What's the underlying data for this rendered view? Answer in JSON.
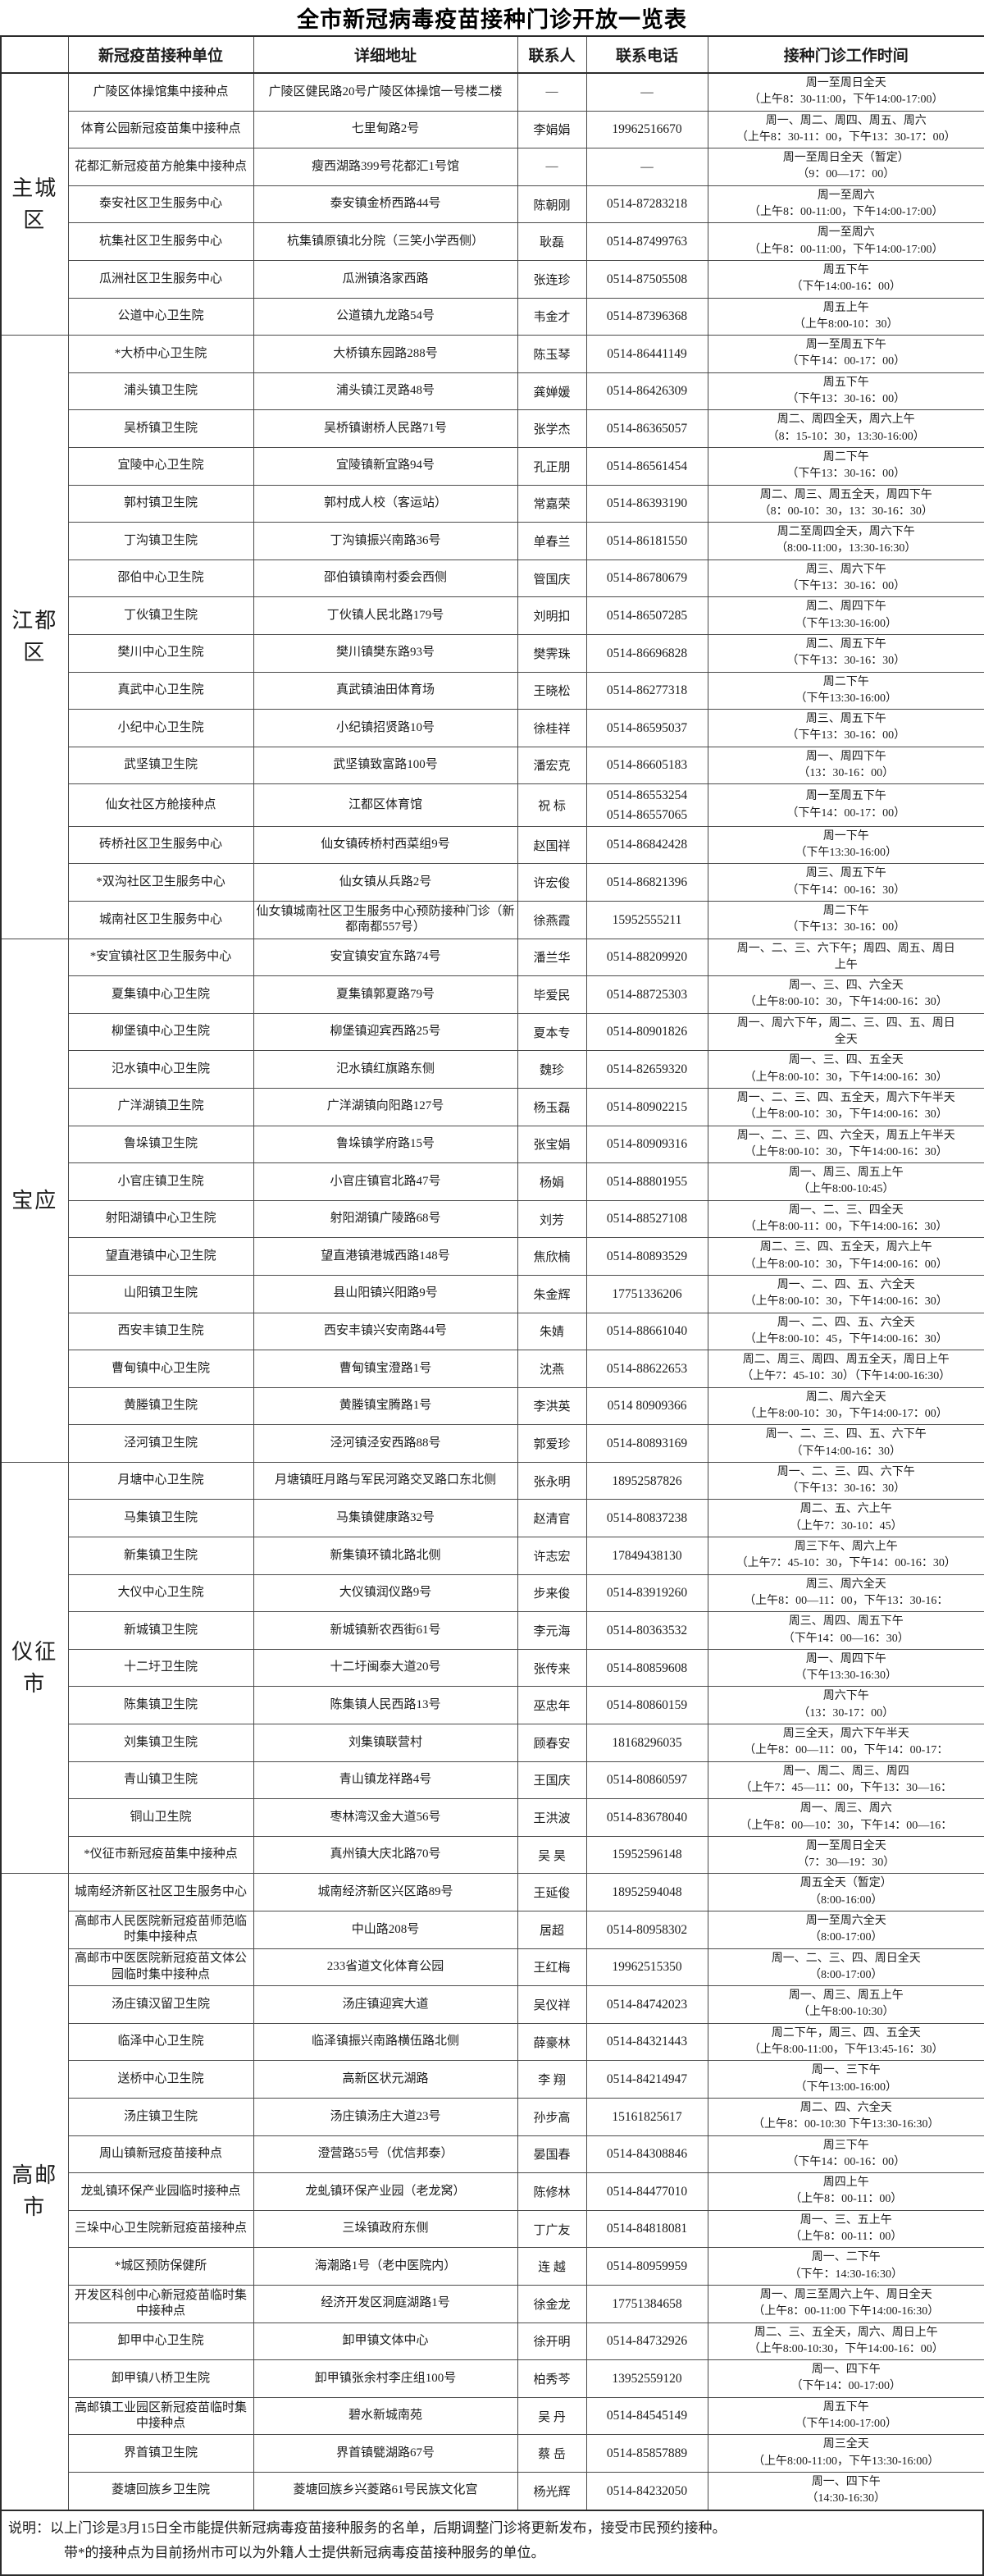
{
  "title": "全市新冠病毒疫苗接种门诊开放一览表",
  "columns": [
    "新冠疫苗接种单位",
    "详细地址",
    "联系人",
    "联系电话",
    "接种门诊工作时间"
  ],
  "sections": [
    {
      "region": "主城区",
      "rows": [
        {
          "unit": "广陵区体操馆集中接种点",
          "address": "广陵区健民路20号广陵区体操馆一号楼二楼",
          "contact": "—",
          "phone": "—",
          "hours": [
            "周一至周日全天",
            "（上午8：30-11:00，下午14:00-17:00）"
          ]
        },
        {
          "unit": "体育公园新冠疫苗集中接种点",
          "address": "七里甸路2号",
          "contact": "李娟娟",
          "phone": "19962516670",
          "hours": [
            "周一、周二、周四、周五、周六",
            "（上午8：30-11：00，下午13：30-17：00）"
          ]
        },
        {
          "unit": "花都汇新冠疫苗方舱集中接种点",
          "address": "瘦西湖路399号花都汇1号馆",
          "contact": "—",
          "phone": "—",
          "hours": [
            "周一至周日全天（暂定）",
            "（9：00—17：00）"
          ]
        },
        {
          "unit": "泰安社区卫生服务中心",
          "address": "泰安镇金桥西路44号",
          "contact": "陈朝刚",
          "phone": "0514-87283218",
          "hours": [
            "周一至周六",
            "（上午8：00-11:00，下午14:00-17:00）"
          ]
        },
        {
          "unit": "杭集社区卫生服务中心",
          "address": "杭集镇原镇北分院（三笑小学西侧）",
          "contact": "耿磊",
          "phone": "0514-87499763",
          "hours": [
            "周一至周六",
            "（上午8：00-11:00，下午14:00-17:00）"
          ]
        },
        {
          "unit": "瓜洲社区卫生服务中心",
          "address": "瓜洲镇洛家西路",
          "contact": "张连珍",
          "phone": "0514-87505508",
          "hours": [
            "周五下午",
            "（下午14:00-16：00）"
          ]
        },
        {
          "unit": "公道中心卫生院",
          "address": "公道镇九龙路54号",
          "contact": "韦金才",
          "phone": "0514-87396368",
          "hours": [
            "周五上午",
            "（上午8:00-10：30）"
          ]
        }
      ]
    },
    {
      "region": "江都区",
      "rows": [
        {
          "unit": "*大桥中心卫生院",
          "address": "大桥镇东园路288号",
          "contact": "陈玉琴",
          "phone": "0514-86441149",
          "hours": [
            "周一至周五下午",
            "（下午14：00-17：00）"
          ]
        },
        {
          "unit": "浦头镇卫生院",
          "address": "浦头镇江灵路48号",
          "contact": "龚婵媛",
          "phone": "0514-86426309",
          "hours": [
            "周五下午",
            "（下午13：30-16：00）"
          ]
        },
        {
          "unit": "吴桥镇卫生院",
          "address": "吴桥镇谢桥人民路71号",
          "contact": "张学杰",
          "phone": "0514-86365057",
          "hours": [
            "周二、周四全天，周六上午",
            "（8：15-10：30，13:30-16:00）"
          ]
        },
        {
          "unit": "宜陵中心卫生院",
          "address": "宜陵镇新宜路94号",
          "contact": "孔正朋",
          "phone": "0514-86561454",
          "hours": [
            "周二下午",
            "（下午13：30-16：00）"
          ]
        },
        {
          "unit": "郭村镇卫生院",
          "address": "郭村成人校（客运站）",
          "contact": "常嘉荣",
          "phone": "0514-86393190",
          "hours": [
            "周二、周三、周五全天，周四下午",
            "（8：00-10：30，13：30-16：30）"
          ]
        },
        {
          "unit": "丁沟镇卫生院",
          "address": "丁沟镇振兴南路36号",
          "contact": "单春兰",
          "phone": "0514-86181550",
          "hours": [
            "周二至周四全天，周六下午",
            "（8:00-11:00，13:30-16:30）"
          ]
        },
        {
          "unit": "邵伯中心卫生院",
          "address": "邵伯镇镇南村委会西侧",
          "contact": "管国庆",
          "phone": "0514-86780679",
          "hours": [
            "周三、周六下午",
            "（下午13：30-16：00）"
          ]
        },
        {
          "unit": "丁伙镇卫生院",
          "address": "丁伙镇人民北路179号",
          "contact": "刘明扣",
          "phone": "0514-86507285",
          "hours": [
            "周二、周四下午",
            "（下午13:30-16:00）"
          ]
        },
        {
          "unit": "樊川中心卫生院",
          "address": "樊川镇樊东路93号",
          "contact": "樊霁珠",
          "phone": "0514-86696828",
          "hours": [
            "周二、周五下午",
            "（下午13：30-16：30）"
          ]
        },
        {
          "unit": "真武中心卫生院",
          "address": "真武镇油田体育场",
          "contact": "王晓松",
          "phone": "0514-86277318",
          "hours": [
            "周二下午",
            "（下午13:30-16:00）"
          ]
        },
        {
          "unit": "小纪中心卫生院",
          "address": "小纪镇招贤路10号",
          "contact": "徐桂祥",
          "phone": "0514-86595037",
          "hours": [
            "周三、周五下午",
            "（下午13：30-16：00）"
          ]
        },
        {
          "unit": "武坚镇卫生院",
          "address": "武坚镇致富路100号",
          "contact": "潘宏克",
          "phone": "0514-86605183",
          "hours": [
            "周一、周四下午",
            "（13：30-16：00）"
          ]
        },
        {
          "unit": "仙女社区方舱接种点",
          "address": "江都区体育馆",
          "contact": "祝 标",
          "phone": "0514-86553254\n0514-86557065",
          "hours": [
            "周一至周五下午",
            "（下午14：00-17：00）"
          ]
        },
        {
          "unit": "砖桥社区卫生服务中心",
          "address": "仙女镇砖桥村西菜组9号",
          "contact": "赵国祥",
          "phone": "0514-86842428",
          "hours": [
            "周一下午",
            "（下午13:30-16:00）"
          ]
        },
        {
          "unit": "*双沟社区卫生服务中心",
          "address": "仙女镇从兵路2号",
          "contact": "许宏俊",
          "phone": "0514-86821396",
          "hours": [
            "周三、周五下午",
            "（下午14：00-16：30）"
          ]
        },
        {
          "unit": "城南社区卫生服务中心",
          "address": "仙女镇城南社区卫生服务中心预防接种门诊（新都南都557号）",
          "contact": "徐燕霞",
          "phone": "15952555211",
          "hours": [
            "周二下午",
            "（下午13：30-16：00）"
          ]
        }
      ]
    },
    {
      "region": "宝应",
      "rows": [
        {
          "unit": "*安宜镇社区卫生服务中心",
          "address": "安宜镇安宜东路74号",
          "contact": "潘兰华",
          "phone": "0514-88209920",
          "hours": [
            "周一、二、三、六下午；周四、周五、周日",
            "上午"
          ]
        },
        {
          "unit": "夏集镇中心卫生院",
          "address": "夏集镇郭夏路79号",
          "contact": "毕爱民",
          "phone": "0514-88725303",
          "hours": [
            "周一、三、四、六全天",
            "（上午8:00-10：30，下午14:00-16：30）"
          ]
        },
        {
          "unit": "柳堡镇中心卫生院",
          "address": "柳堡镇迎宾西路25号",
          "contact": "夏本专",
          "phone": "0514-80901826",
          "hours": [
            "周一、周六下午，周二、三、四、五、周日",
            "全天"
          ]
        },
        {
          "unit": "氾水镇中心卫生院",
          "address": "氾水镇红旗路东侧",
          "contact": "魏珍",
          "phone": "0514-82659320",
          "hours": [
            "周一、三、四、五全天",
            "（上午8:00-10：30，下午14:00-16：30）"
          ]
        },
        {
          "unit": "广洋湖镇卫生院",
          "address": "广洋湖镇向阳路127号",
          "contact": "杨玉磊",
          "phone": "0514-80902215",
          "hours": [
            "周一、二、三、四、五全天，周六下午半天",
            "（上午8:00-10：30，下午14:00-16：30）"
          ]
        },
        {
          "unit": "鲁垛镇卫生院",
          "address": "鲁垛镇学府路15号",
          "contact": "张宝娟",
          "phone": "0514-80909316",
          "hours": [
            "周一、二、三、四、六全天，周五上午半天",
            "（上午8:00-10：30，下午14:00-16：30）"
          ]
        },
        {
          "unit": "小官庄镇卫生院",
          "address": "小官庄镇官北路47号",
          "contact": "杨娟",
          "phone": "0514-88801955",
          "hours": [
            "周一、周三、周五上午",
            "（上午8:00-10:45）"
          ]
        },
        {
          "unit": "射阳湖镇中心卫生院",
          "address": "射阳湖镇广陵路68号",
          "contact": "刘芳",
          "phone": "0514-88527108",
          "hours": [
            "周一、二、三、四全天",
            "（上午8:00-11：00，下午14:00-16：30）"
          ]
        },
        {
          "unit": "望直港镇中心卫生院",
          "address": "望直港镇港城西路148号",
          "contact": "焦欣楠",
          "phone": "0514-80893529",
          "hours": [
            "周二、三、四、五全天，周六上午",
            "（上午8:00-10：30，下午14:00-16：00）"
          ]
        },
        {
          "unit": "山阳镇卫生院",
          "address": "县山阳镇兴阳路9号",
          "contact": "朱金辉",
          "phone": "17751336206",
          "hours": [
            "周一、二、四、五、六全天",
            "（上午8:00-10：30，下午14:00-16：30）"
          ]
        },
        {
          "unit": "西安丰镇卫生院",
          "address": "西安丰镇兴安南路44号",
          "contact": "朱婧",
          "phone": "0514-88661040",
          "hours": [
            "周一、二、四、五、六全天",
            "（上午8:00-10：45，下午14:00-16：30）"
          ]
        },
        {
          "unit": "曹甸镇中心卫生院",
          "address": "曹甸镇宝澄路1号",
          "contact": "沈燕",
          "phone": "0514-88622653",
          "hours": [
            "周二、周三、周四、周五全天，周日上午",
            "（上午7：45-10：30）（下午14:00-16:30）"
          ]
        },
        {
          "unit": "黄塍镇卫生院",
          "address": "黄塍镇宝腾路1号",
          "contact": "李洪英",
          "phone": "0514 80909366",
          "hours": [
            "周二、周六全天",
            "（上午8:00-10：30，下午14:00-17：00）"
          ]
        },
        {
          "unit": "泾河镇卫生院",
          "address": "泾河镇泾安西路88号",
          "contact": "郭爱珍",
          "phone": "0514-80893169",
          "hours": [
            "周一、二、三、四、五、六下午",
            "（下午14:00-16：30）"
          ]
        }
      ]
    },
    {
      "region": "仪征市",
      "rows": [
        {
          "unit": "月塘中心卫生院",
          "address": "月塘镇旺月路与军民河路交叉路口东北侧",
          "contact": "张永明",
          "phone": "18952587826",
          "hours": [
            "周一、二、三、四、六下午",
            "（下午13：30-16：30）"
          ]
        },
        {
          "unit": "马集镇卫生院",
          "address": "马集镇健康路32号",
          "contact": "赵清官",
          "phone": "0514-80837238",
          "hours": [
            "周二、五、六上午",
            "（上午7：30-10：45）"
          ]
        },
        {
          "unit": "新集镇卫生院",
          "address": "新集镇环镇北路北侧",
          "contact": "许志宏",
          "phone": "17849438130",
          "hours": [
            "周三下午、周六上午",
            "（上午7：45-10：30，下午14：00-16：30）"
          ]
        },
        {
          "unit": "大仪中心卫生院",
          "address": "大仪镇润仪路9号",
          "contact": "步来俊",
          "phone": "0514-83919260",
          "hours": [
            "周三、周六全天",
            "（上午8：00—11：00，下午13：30-16："
          ]
        },
        {
          "unit": "新城镇卫生院",
          "address": "新城镇新农西街61号",
          "contact": "李元海",
          "phone": "0514-80363532",
          "hours": [
            "周三、周四、周五下午",
            "（下午14：00—16：30）"
          ]
        },
        {
          "unit": "十二圩卫生院",
          "address": "十二圩闽泰大道20号",
          "contact": "张传来",
          "phone": "0514-80859608",
          "hours": [
            "周一、周四下午",
            "（下午13:30-16:30）"
          ]
        },
        {
          "unit": "陈集镇卫生院",
          "address": "陈集镇人民西路13号",
          "contact": "巫忠年",
          "phone": "0514-80860159",
          "hours": [
            "周六下午",
            "（13：30-17：00）"
          ]
        },
        {
          "unit": "刘集镇卫生院",
          "address": "刘集镇联营村",
          "contact": "顾春安",
          "phone": "18168296035",
          "hours": [
            "周三全天，周六下午半天",
            "（上午8：00—11：00，下午14：00-17："
          ]
        },
        {
          "unit": "青山镇卫生院",
          "address": "青山镇龙祥路4号",
          "contact": "王国庆",
          "phone": "0514-80860597",
          "hours": [
            "周一、周二、周三、周四",
            "（上午7：45—11：00，下午13：30—16："
          ]
        },
        {
          "unit": "铜山卫生院",
          "address": "枣林湾汉金大道56号",
          "contact": "王洪波",
          "phone": "0514-83678040",
          "hours": [
            "周一、周三、周六",
            "（上午8：00—10：30，下午14：00—16："
          ]
        },
        {
          "unit": "*仪征市新冠疫苗集中接种点",
          "address": "真州镇大庆北路70号",
          "contact": "吴 昊",
          "phone": "15952596148",
          "hours": [
            "周一至周日全天",
            "（7：30—19：30）"
          ]
        }
      ]
    },
    {
      "region": "高邮市",
      "rows": [
        {
          "unit": "城南经济新区社区卫生服务中心",
          "address": "城南经济新区兴区路89号",
          "contact": "王延俊",
          "phone": "18952594048",
          "hours": [
            "周五全天（暂定）",
            "（8:00-16:00）"
          ]
        },
        {
          "unit": "高邮市人民医院新冠疫苗师范临时集中接种点",
          "address": "中山路208号",
          "contact": "居超",
          "phone": "0514-80958302",
          "hours": [
            "周一至周六全天",
            "（8:00-17:00）"
          ]
        },
        {
          "unit": "高邮市中医医院新冠疫苗文体公园临时集中接种点",
          "address": "233省道文化体育公园",
          "contact": "王红梅",
          "phone": "19962515350",
          "hours": [
            "周一、二、三、四、周日全天",
            "（8:00-17:00）"
          ]
        },
        {
          "unit": "汤庄镇汉留卫生院",
          "address": "汤庄镇迎宾大道",
          "contact": "吴仪祥",
          "phone": "0514-84742023",
          "hours": [
            "周一、周三、周五上午",
            "（上午8:00-10:30）"
          ]
        },
        {
          "unit": "临泽中心卫生院",
          "address": "临泽镇振兴南路横伍路北侧",
          "contact": "薛豪林",
          "phone": "0514-84321443",
          "hours": [
            "周二下午，周三、四、五全天",
            "（上午8:00-11:00，下午13:45-16：30）"
          ]
        },
        {
          "unit": "送桥中心卫生院",
          "address": "高新区状元湖路",
          "contact": "李 翔",
          "phone": "0514-84214947",
          "hours": [
            "周一、三下午",
            "（下午13:00-16:00）"
          ]
        },
        {
          "unit": "汤庄镇卫生院",
          "address": "汤庄镇汤庄大道23号",
          "contact": "孙步高",
          "phone": "15161825617",
          "hours": [
            "周二、四、六全天",
            "（上午8：00-10:30 下午13:30-16:30）"
          ]
        },
        {
          "unit": "周山镇新冠疫苗接种点",
          "address": "澄营路55号（优信邦泰）",
          "contact": "晏国春",
          "phone": "0514-84308846",
          "hours": [
            "周三下午",
            "（下午14：00-16：00）"
          ]
        },
        {
          "unit": "龙虬镇环保产业园临时接种点",
          "address": "龙虬镇环保产业园（老龙窝）",
          "contact": "陈修林",
          "phone": "0514-84477010",
          "hours": [
            "周四上午",
            "（上午8：00-11：00）"
          ]
        },
        {
          "unit": "三垛中心卫生院新冠疫苗接种点",
          "address": "三垛镇政府东侧",
          "contact": "丁广友",
          "phone": "0514-84818081",
          "hours": [
            "周一、三、五上午",
            "（上午8：00-11：00）"
          ]
        },
        {
          "unit": "*城区预防保健所",
          "address": "海潮路1号（老中医院内）",
          "contact": "连 越",
          "phone": "0514-80959959",
          "hours": [
            "周一、二下午",
            "（下午：14:30-16:30）"
          ]
        },
        {
          "unit": "开发区科创中心新冠疫苗临时集中接种点",
          "address": "经济开发区洞庭湖路1号",
          "contact": "徐金龙",
          "phone": "17751384658",
          "hours": [
            "周一、周三至周六上午、周日全天",
            "（上午8：00-11:00 下午14:00-16:30）"
          ]
        },
        {
          "unit": "卸甲中心卫生院",
          "address": "卸甲镇文体中心",
          "contact": "徐开明",
          "phone": "0514-84732926",
          "hours": [
            "周二、三、五全天，周六、周日上午",
            "（上午8:00-10:30，下午14:00-16：00）"
          ]
        },
        {
          "unit": "卸甲镇八桥卫生院",
          "address": "卸甲镇张余村李庄组100号",
          "contact": "柏秀芩",
          "phone": "13952559120",
          "hours": [
            "周一、四下午",
            "（下午14：00-17:00）"
          ]
        },
        {
          "unit": "高邮镇工业园区新冠疫苗临时集中接种点",
          "address": "碧水新城南苑",
          "contact": "吴 丹",
          "phone": "0514-84545149",
          "hours": [
            "周五下午",
            "（下午14:00-17:00）"
          ]
        },
        {
          "unit": "界首镇卫生院",
          "address": "界首镇甓湖路67号",
          "contact": "蔡 岳",
          "phone": "0514-85857889",
          "hours": [
            "周三全天",
            "（上午8:00-11:00，下午13:30-16:00）"
          ]
        },
        {
          "unit": "菱塘回族乡卫生院",
          "address": "菱塘回族乡兴菱路61号民族文化宫",
          "contact": "杨光辉",
          "phone": "0514-84232050",
          "hours": [
            "周一、四下午",
            "（14:30-16:30）"
          ]
        }
      ]
    }
  ],
  "notes": [
    "说明：以上门诊是3月15日全市能提供新冠病毒疫苗接种服务的名单，后期调整门诊将更新发布，接受市民预约接种。",
    "带*的接种点为目前扬州市可以为外籍人士提供新冠病毒疫苗接种服务的单位。"
  ]
}
